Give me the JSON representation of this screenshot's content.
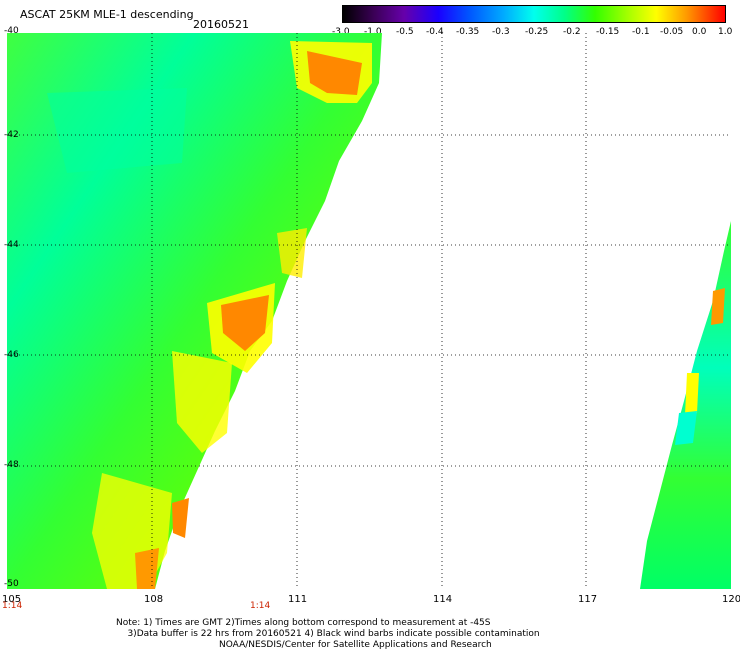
{
  "header": {
    "title": "ASCAT 25KM MLE-1 descending",
    "date": "20160521"
  },
  "colorbar": {
    "labels": [
      "-3.0",
      "-1.0",
      "-0.5",
      "-0.4",
      "-0.35",
      "-0.3",
      "-0.25",
      "-0.2",
      "-0.15",
      "-0.1",
      "-0.05",
      "0.0",
      "1.0"
    ],
    "colors": [
      "#000000",
      "#6600aa",
      "#1a00ff",
      "#0055ff",
      "#0099ff",
      "#00e0ff",
      "#00ffb0",
      "#00ff40",
      "#7fff00",
      "#ffff00",
      "#ff9900",
      "#ff3300",
      "#ff0000"
    ]
  },
  "axes": {
    "lat_labels": [
      "-40",
      "-42",
      "-44",
      "-46",
      "-48",
      "-50"
    ],
    "lon_labels": [
      "105",
      "108",
      "111",
      "114",
      "117",
      "120"
    ],
    "time_labels": [
      "1:14",
      "1:14"
    ]
  },
  "notes": {
    "line1": "Note: 1) Times are GMT 2)Times along bottom correspond to measurement at -45S",
    "line2": "3)Data buffer is 22 hrs from 20160521 4) Black wind barbs indicate possible contamination",
    "line3": "NOAA/NESDIS/Center for Satellite Applications and Research"
  },
  "map_data": {
    "lat_range": [
      -50,
      -40
    ],
    "lon_range": [
      105,
      120
    ],
    "swaths": [
      "left swath: 105E-113E",
      "right swath: 118E-120E"
    ]
  }
}
